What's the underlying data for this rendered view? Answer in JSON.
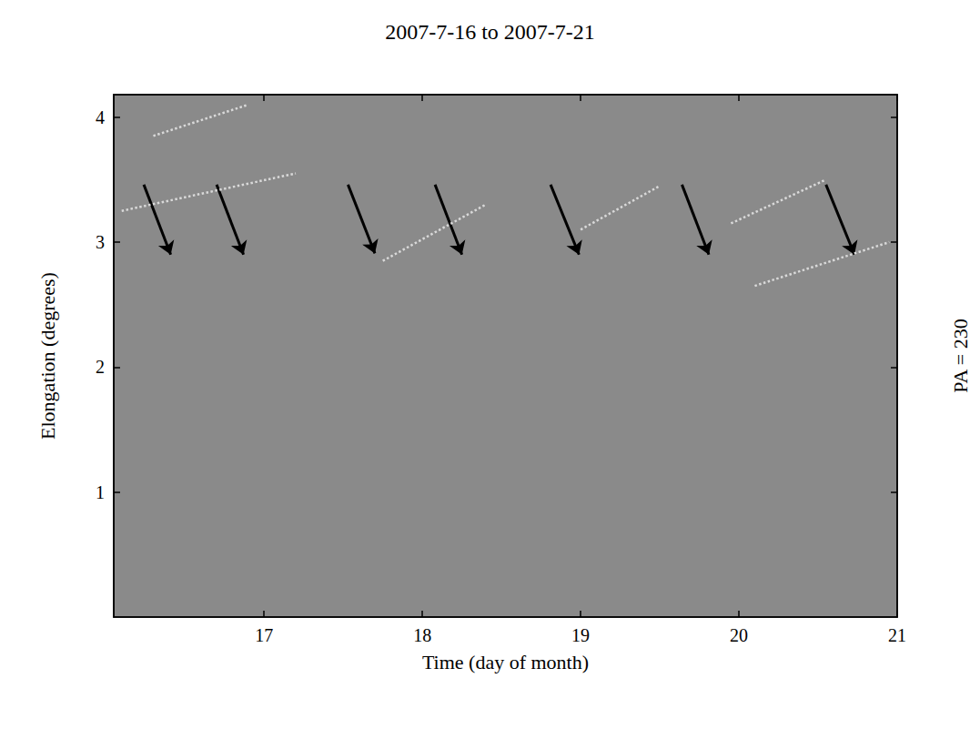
{
  "chart_data": {
    "type": "line",
    "title": "2007-7-16 to 2007-7-21",
    "x_label": "Time (day of month)",
    "y_label": "Elongation (degrees)",
    "right_label": "PA = 230",
    "xlim": [
      16.05,
      21
    ],
    "xticks": [
      17,
      18,
      19,
      20,
      21
    ],
    "ylim": [
      0,
      4.18
    ],
    "yticks": [
      1,
      2,
      3,
      4
    ],
    "grid": false,
    "series": [
      {
        "x": [
          16.1,
          17.2
        ],
        "values": [
          3.25,
          3.55
        ],
        "color": "#d9d9d9",
        "line_style": "dotted"
      },
      {
        "x": [
          16.3,
          16.9
        ],
        "values": [
          3.85,
          4.1
        ],
        "color": "#d9d9d9",
        "line_style": "dotted"
      },
      {
        "x": [
          17.75,
          18.4
        ],
        "values": [
          2.85,
          3.3
        ],
        "color": "#d9d9d9",
        "line_style": "dotted"
      },
      {
        "x": [
          19.0,
          19.5
        ],
        "values": [
          3.1,
          3.45
        ],
        "color": "#d9d9d9",
        "line_style": "dotted"
      },
      {
        "x": [
          19.95,
          20.55
        ],
        "values": [
          3.15,
          3.5
        ],
        "color": "#d9d9d9",
        "line_style": "dotted"
      },
      {
        "x": [
          20.1,
          20.95
        ],
        "values": [
          2.65,
          3.0
        ],
        "color": "#d9d9d9",
        "line_style": "dotted"
      }
    ],
    "arrows": [
      {
        "x": [
          16.24,
          16.41
        ],
        "y": [
          3.46,
          2.9
        ]
      },
      {
        "x": [
          16.7,
          16.87
        ],
        "y": [
          3.46,
          2.9
        ]
      },
      {
        "x": [
          17.53,
          17.7
        ],
        "y": [
          3.46,
          2.91
        ]
      },
      {
        "x": [
          18.08,
          18.25
        ],
        "y": [
          3.46,
          2.9
        ]
      },
      {
        "x": [
          18.81,
          18.99
        ],
        "y": [
          3.46,
          2.9
        ]
      },
      {
        "x": [
          19.64,
          19.81
        ],
        "y": [
          3.46,
          2.9
        ]
      },
      {
        "x": [
          20.55,
          20.73
        ],
        "y": [
          3.46,
          2.9
        ]
      }
    ],
    "arrow_color": "#000000"
  }
}
